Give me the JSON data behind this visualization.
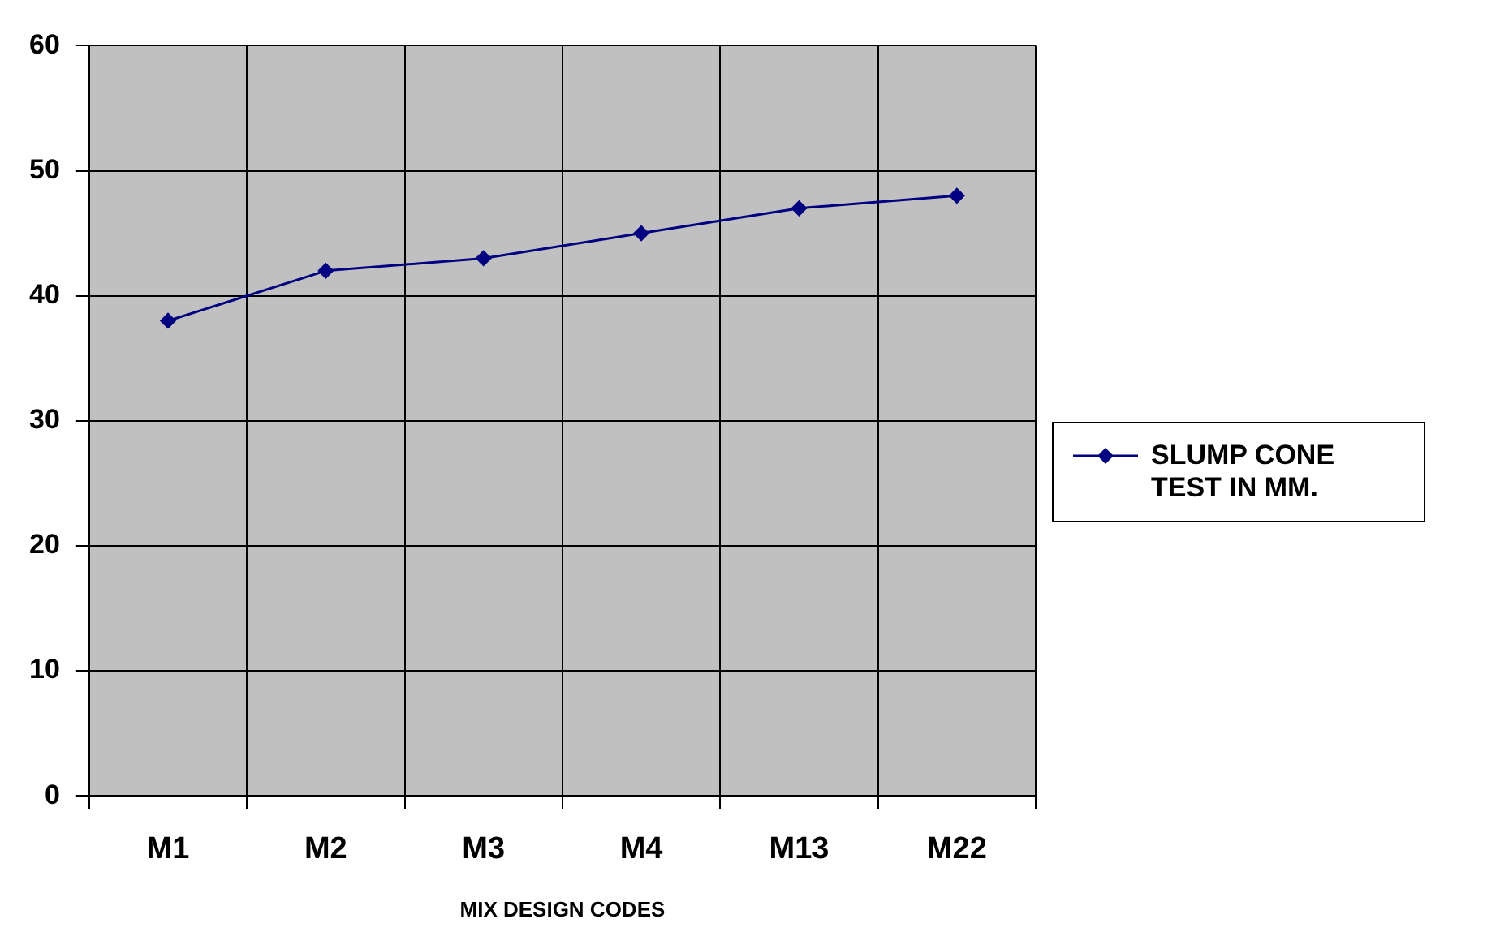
{
  "chart_data": {
    "type": "line",
    "xlabel": "MIX DESIGN CODES",
    "categories": [
      "M1",
      "M2",
      "M3",
      "M4",
      "M13",
      "M22"
    ],
    "series": [
      {
        "name": "SLUMP CONE TEST IN MM.",
        "color": "#000080",
        "values": [
          38,
          42,
          43,
          45,
          47,
          48
        ]
      }
    ],
    "ylim": [
      0,
      60
    ],
    "yticks": [
      0,
      10,
      20,
      30,
      40,
      50,
      60
    ],
    "grid": true,
    "legend": "right",
    "marker": "diamond",
    "line_style": "solid"
  }
}
